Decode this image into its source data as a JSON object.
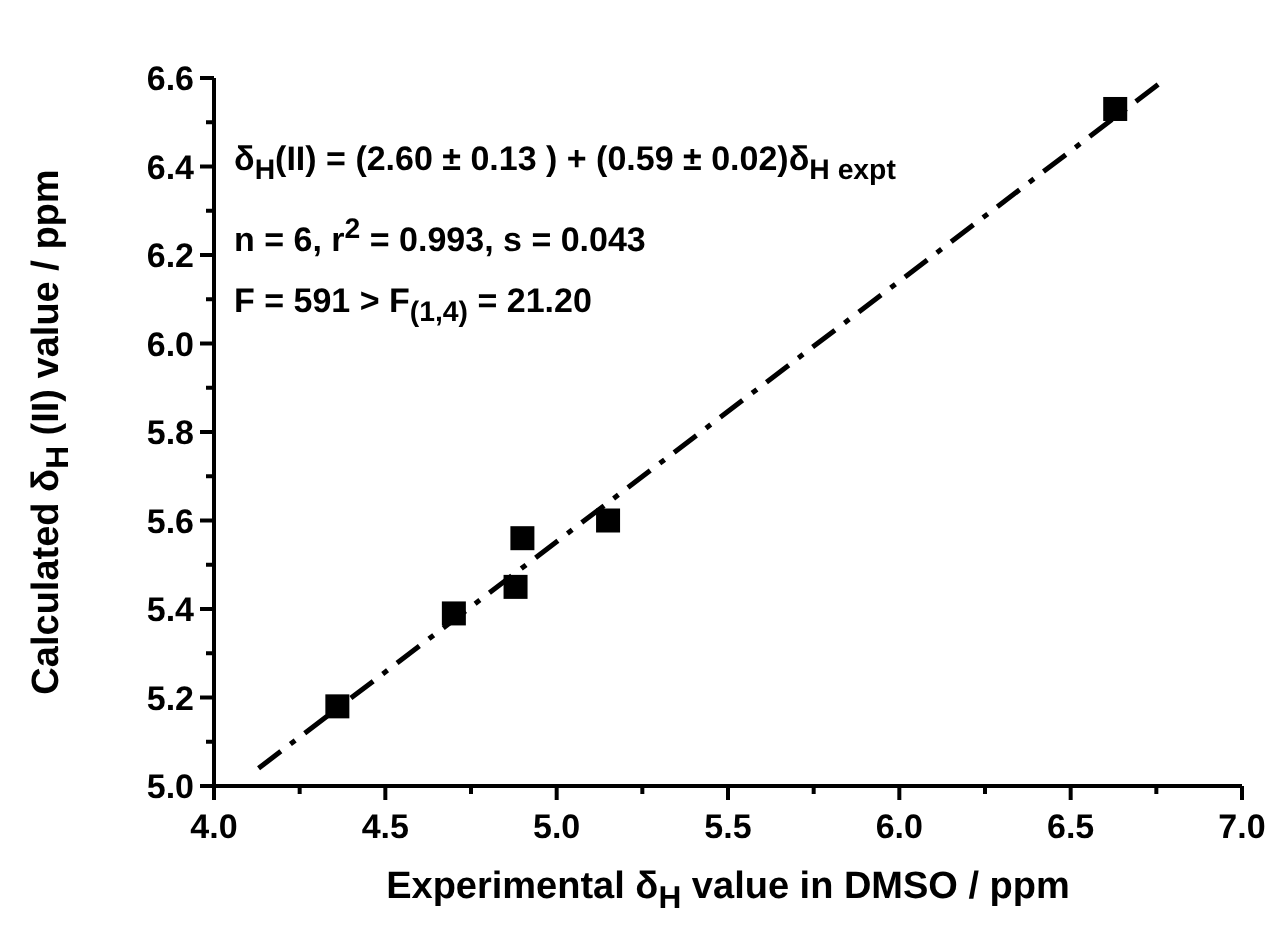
{
  "chart_data": {
    "type": "scatter",
    "xlabel": "Experimental δ$_{H}$ value in DMSO / ppm",
    "ylabel": "Calculated δ$_{H}$ (II) value / ppm",
    "annotations": [
      "δ$_{H}$(II) = (2.60 ± 0.13 ) + (0.59 ± 0.02)δ$_{H expt}$",
      "n = 6, r$^{2}$ = 0.993, s = 0.043",
      "F = 591 > F$_{(1,4)}$ = 21.20"
    ],
    "series": [
      {
        "color": "#000000",
        "marker": "square",
        "x": [
          4.36,
          4.7,
          4.88,
          4.9,
          5.15,
          6.63
        ],
        "values": [
          5.18,
          5.39,
          5.45,
          5.56,
          5.6,
          6.53
        ]
      },
      {
        "type": "line",
        "color": "#000000",
        "marker": "none",
        "line_style": "dashed",
        "x": [
          4.13,
          6.78
        ],
        "values": [
          5.04,
          6.6
        ]
      }
    ],
    "xlim": [
      4.0,
      7.0
    ],
    "xticks": [
      {
        "value": 4,
        "label": "4.0"
      },
      {
        "value": 4.25,
        "label": null
      },
      4.5,
      {
        "value": 4.75,
        "label": null
      },
      {
        "value": 5,
        "label": "5.0"
      },
      {
        "value": 5.25,
        "label": null
      },
      5.5,
      {
        "value": 5.75,
        "label": null
      },
      {
        "value": 6,
        "label": "6.0"
      },
      {
        "value": 6.25,
        "label": null
      },
      6.5,
      {
        "value": 6.75,
        "label": null
      },
      {
        "value": 7,
        "label": "7.0"
      }
    ],
    "ylim": [
      5.0,
      6.6
    ],
    "yticks": [
      {
        "value": 5,
        "label": "5.0"
      },
      {
        "value": 5.1,
        "label": null
      },
      5.2,
      {
        "value": 5.3,
        "label": null
      },
      5.4,
      {
        "value": 5.5,
        "label": null
      },
      5.6,
      {
        "value": 5.7,
        "label": null
      },
      5.8,
      {
        "value": 5.9,
        "label": null
      },
      {
        "value": 6,
        "label": "6.0"
      },
      {
        "value": 6.1,
        "label": null
      },
      6.2,
      {
        "value": 6.3,
        "label": null
      },
      6.4,
      {
        "value": 6.5,
        "label": null
      },
      6.6
    ],
    "grid": false
  }
}
